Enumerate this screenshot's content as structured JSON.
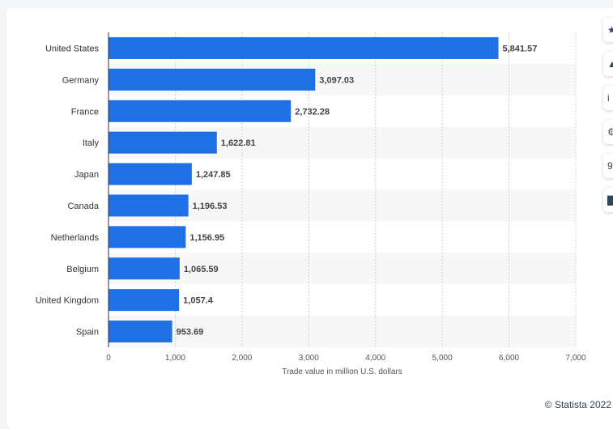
{
  "chart_data": {
    "type": "bar",
    "orientation": "horizontal",
    "categories": [
      "United States",
      "Germany",
      "France",
      "Italy",
      "Japan",
      "Canada",
      "Netherlands",
      "Belgium",
      "United Kingdom",
      "Spain"
    ],
    "values": [
      5841.57,
      3097.03,
      2732.28,
      1622.81,
      1247.85,
      1196.53,
      1156.95,
      1065.59,
      1057.4,
      953.69
    ],
    "value_labels": [
      "5,841.57",
      "3,097.03",
      "2,732.28",
      "1,622.81",
      "1,247.85",
      "1,196.53",
      "1,156.95",
      "1,065.59",
      "1,057.4",
      "953.69"
    ],
    "xlabel": "Trade value in million U.S. dollars",
    "xlim": [
      0,
      7000
    ],
    "xticks": [
      0,
      1000,
      2000,
      3000,
      4000,
      5000,
      6000,
      7000
    ],
    "xtick_labels": [
      "0",
      "1,000",
      "2,000",
      "3,000",
      "4,000",
      "5,000",
      "6,000",
      "7,000"
    ],
    "grid": true,
    "colors": {
      "bar": "#1f6fe5",
      "band": "#f7f7f7",
      "grid": "#cfcfcf",
      "axis": "#333333",
      "text": "#333333"
    }
  },
  "side_tools": [
    {
      "name": "star-icon",
      "glyph": "★"
    },
    {
      "name": "bell-icon",
      "glyph": "▲"
    },
    {
      "name": "info-icon",
      "glyph": "i"
    },
    {
      "name": "settings-icon",
      "glyph": "⚙"
    },
    {
      "name": "quote-icon",
      "glyph": "9"
    },
    {
      "name": "print-icon",
      "glyph": "▇"
    }
  ],
  "credit": "© Statista 2022"
}
